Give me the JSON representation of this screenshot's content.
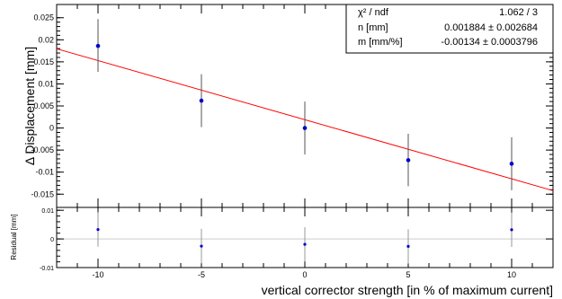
{
  "chart_data": [
    {
      "type": "scatter",
      "panel": "main",
      "xlabel": "vertical corrector strength [in % of maximum current]",
      "ylabel": "Δ Displacement [mm]",
      "xlim": [
        -12,
        12
      ],
      "ylim": [
        -0.018,
        0.028
      ],
      "x_ticks": [
        -10,
        -5,
        0,
        5,
        10
      ],
      "y_ticks": [
        -0.015,
        -0.01,
        -0.005,
        0,
        0.005,
        0.01,
        0.015,
        0.02,
        0.025
      ],
      "y_tick_labels": [
        "-0.015",
        "-0.01",
        "-0.005",
        "0",
        "0.005",
        "0.01",
        "0.015",
        "0.02",
        "0.025"
      ],
      "points": [
        {
          "x": -10,
          "y": 0.0186,
          "err_low": 0.0127,
          "err_high": 0.0247
        },
        {
          "x": -5,
          "y": 0.0062,
          "err_low": 0.0002,
          "err_high": 0.0122
        },
        {
          "x": 0,
          "y": 0.0,
          "err_low": -0.006,
          "err_high": 0.006
        },
        {
          "x": 5,
          "y": -0.0073,
          "err_low": -0.0132,
          "err_high": -0.0013
        },
        {
          "x": 10,
          "y": -0.0081,
          "err_low": -0.0141,
          "err_high": -0.0021
        }
      ],
      "fit": {
        "slope": -0.00134,
        "intercept": 0.001884,
        "color": "#ff0000"
      },
      "stats": [
        {
          "label": "χ² / ndf",
          "value": "1.062 / 3"
        },
        {
          "label": "n [mm]",
          "value": "0.001884 ± 0.002684"
        },
        {
          "label": "m [mm/%]",
          "value": "-0.00134 ± 0.0003796"
        }
      ],
      "marker_color": "#0000cc",
      "grid": false
    },
    {
      "type": "scatter",
      "panel": "residual",
      "ylabel": "Residual [mm]",
      "xlim": [
        -12,
        12
      ],
      "ylim": [
        -0.01,
        0.011
      ],
      "y_ticks": [
        -0.01,
        0,
        0.01
      ],
      "y_tick_labels": [
        "-0.01",
        "0",
        "0.01"
      ],
      "points": [
        {
          "x": -10,
          "y": 0.0033,
          "err_low": -0.0027,
          "err_high": 0.0093
        },
        {
          "x": -5,
          "y": -0.0025,
          "err_low": -0.0085,
          "err_high": 0.0035
        },
        {
          "x": 0,
          "y": -0.0019,
          "err_low": -0.0079,
          "err_high": 0.0041
        },
        {
          "x": 5,
          "y": -0.0026,
          "err_low": -0.0086,
          "err_high": 0.0034
        },
        {
          "x": 10,
          "y": 0.0032,
          "err_low": -0.0028,
          "err_high": 0.0092
        }
      ],
      "zero_line": true,
      "marker_color": "#0000cc"
    }
  ]
}
